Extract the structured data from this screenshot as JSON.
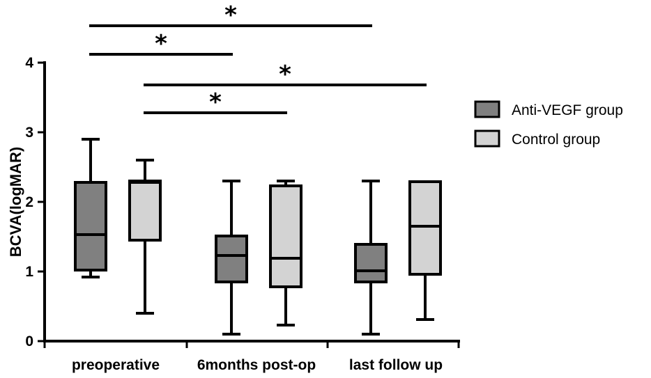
{
  "chart_data": {
    "type": "box",
    "ylabel": "BCVA(logMAR)",
    "ylim": [
      0,
      4
    ],
    "yticks": [
      0,
      1,
      2,
      3,
      4
    ],
    "categories": [
      "preoperative",
      "6months post-op",
      "last follow up"
    ],
    "legend_position": "right",
    "grid": false,
    "series": [
      {
        "name": "Anti-VEGF group",
        "color": "#808080",
        "boxes": [
          {
            "min": 0.92,
            "q1": 1.02,
            "median": 1.53,
            "q3": 2.28,
            "max": 2.9
          },
          {
            "min": 0.1,
            "q1": 0.85,
            "median": 1.23,
            "q3": 1.51,
            "max": 2.3
          },
          {
            "min": 0.1,
            "q1": 0.85,
            "median": 1.01,
            "q3": 1.39,
            "max": 2.3
          }
        ]
      },
      {
        "name": "Control group",
        "color": "#d3d3d3",
        "boxes": [
          {
            "min": 0.4,
            "q1": 1.45,
            "median": 2.28,
            "q3": 2.3,
            "max": 2.6
          },
          {
            "min": 0.23,
            "q1": 0.78,
            "median": 1.19,
            "q3": 2.23,
            "max": 2.3
          },
          {
            "min": 0.31,
            "q1": 0.96,
            "median": 1.65,
            "q3": 2.29,
            "max": 2.29
          }
        ]
      }
    ],
    "significance": [
      {
        "label": "*",
        "from": {
          "category": 0,
          "series": 0
        },
        "to": {
          "category": 2,
          "series": 0
        }
      },
      {
        "label": "*",
        "from": {
          "category": 0,
          "series": 0
        },
        "to": {
          "category": 1,
          "series": 0
        }
      },
      {
        "label": "*",
        "from": {
          "category": 0,
          "series": 1
        },
        "to": {
          "category": 2,
          "series": 1
        }
      },
      {
        "label": "*",
        "from": {
          "category": 0,
          "series": 1
        },
        "to": {
          "category": 1,
          "series": 1
        }
      }
    ]
  }
}
